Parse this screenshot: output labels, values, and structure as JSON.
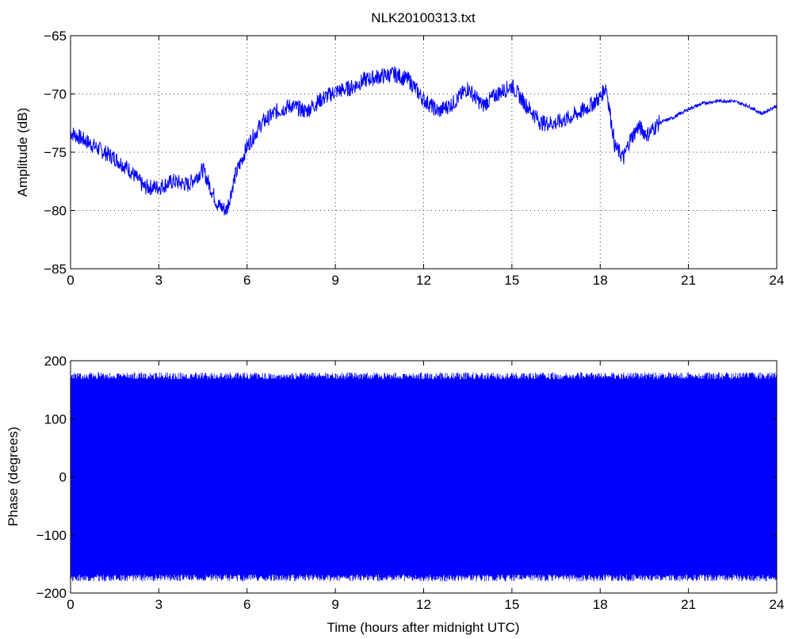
{
  "chart_data": [
    {
      "type": "line",
      "title": "NLK20100313.txt",
      "xlabel": "",
      "ylabel": "Amplitude (dB)",
      "xlim": [
        0,
        24
      ],
      "ylim": [
        -85,
        -65
      ],
      "xticks": [
        0,
        3,
        6,
        9,
        12,
        15,
        18,
        21,
        24
      ],
      "yticks": [
        -85,
        -80,
        -75,
        -70,
        -65
      ],
      "grid": true,
      "color": "#0000ff",
      "series": [
        {
          "name": "",
          "x": [
            0,
            0.5,
            1.0,
            1.5,
            2.0,
            2.5,
            3.0,
            3.5,
            4.0,
            4.5,
            5.0,
            5.3,
            5.6,
            6.0,
            6.5,
            7.0,
            7.5,
            8.0,
            8.5,
            9.0,
            9.5,
            10.0,
            10.5,
            11.0,
            11.5,
            12.0,
            12.5,
            13.0,
            13.5,
            14.0,
            14.5,
            15.0,
            15.5,
            16.0,
            16.5,
            17.0,
            17.5,
            18.0,
            18.2,
            18.5,
            18.8,
            19.0,
            19.3,
            19.6,
            20.0,
            20.5,
            21.0,
            21.5,
            22.0,
            22.5,
            23.0,
            23.5,
            24.0
          ],
          "y": [
            -73.3,
            -74.0,
            -74.8,
            -75.5,
            -76.5,
            -78.0,
            -78.0,
            -77.5,
            -77.8,
            -76.5,
            -79.5,
            -80.0,
            -77.0,
            -74.5,
            -72.5,
            -71.5,
            -71.0,
            -71.5,
            -70.5,
            -69.8,
            -69.5,
            -68.8,
            -68.5,
            -68.3,
            -68.8,
            -70.5,
            -71.5,
            -70.8,
            -69.5,
            -71.0,
            -70.0,
            -69.3,
            -71.0,
            -72.5,
            -72.5,
            -72.0,
            -71.3,
            -70.3,
            -69.3,
            -74.5,
            -75.5,
            -74.0,
            -72.8,
            -73.5,
            -72.5,
            -72.0,
            -71.3,
            -70.8,
            -70.6,
            -70.6,
            -71.0,
            -71.7,
            -71.0
          ]
        }
      ]
    },
    {
      "type": "line",
      "title": "",
      "xlabel": "Time (hours after midnight UTC)",
      "ylabel": "Phase (degrees)",
      "xlim": [
        0,
        24
      ],
      "ylim": [
        -200,
        200
      ],
      "xticks": [
        0,
        3,
        6,
        9,
        12,
        15,
        18,
        21,
        24
      ],
      "yticks": [
        -200,
        -100,
        0,
        100,
        200
      ],
      "grid": false,
      "color": "#0000ff",
      "series": [
        {
          "name": "",
          "x": [
            0,
            24
          ],
          "y": [
            -180,
            180
          ]
        }
      ]
    }
  ]
}
